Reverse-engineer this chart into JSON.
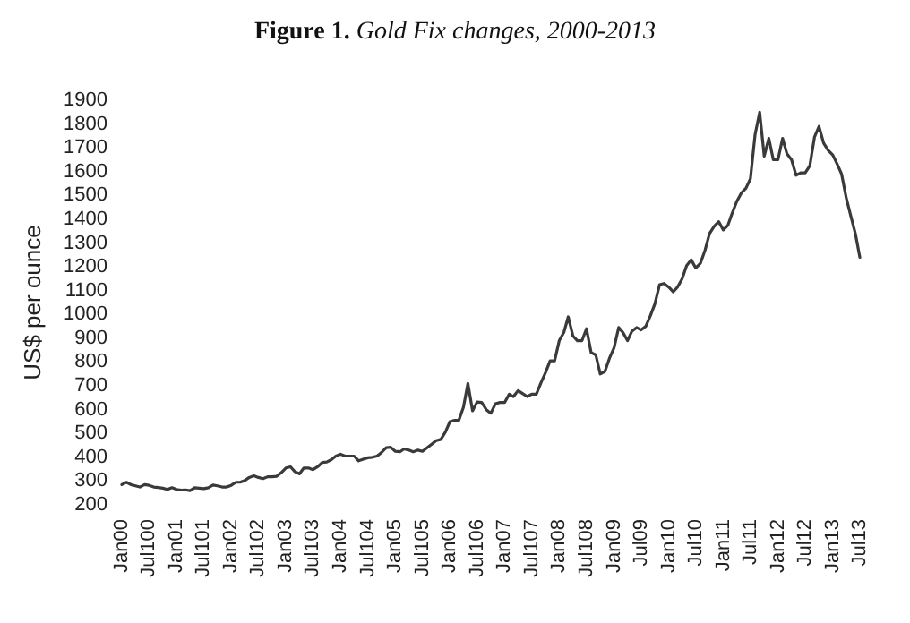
{
  "chart_data": {
    "type": "line",
    "title": "Figure 1. Gold Fix changes, 2000-2013",
    "ylabel": "US$ per ounce",
    "x": [
      "2000-01",
      "2000-02",
      "2000-03",
      "2000-04",
      "2000-05",
      "2000-06",
      "2000-07",
      "2000-08",
      "2000-09",
      "2000-10",
      "2000-11",
      "2000-12",
      "2001-01",
      "2001-02",
      "2001-03",
      "2001-04",
      "2001-05",
      "2001-06",
      "2001-07",
      "2001-08",
      "2001-09",
      "2001-10",
      "2001-11",
      "2001-12",
      "2002-01",
      "2002-02",
      "2002-03",
      "2002-04",
      "2002-05",
      "2002-06",
      "2002-07",
      "2002-08",
      "2002-09",
      "2002-10",
      "2002-11",
      "2002-12",
      "2003-01",
      "2003-02",
      "2003-03",
      "2003-04",
      "2003-05",
      "2003-06",
      "2003-07",
      "2003-08",
      "2003-09",
      "2003-10",
      "2003-11",
      "2003-12",
      "2004-01",
      "2004-02",
      "2004-03",
      "2004-04",
      "2004-05",
      "2004-06",
      "2004-07",
      "2004-08",
      "2004-09",
      "2004-10",
      "2004-11",
      "2004-12",
      "2005-01",
      "2005-02",
      "2005-03",
      "2005-04",
      "2005-05",
      "2005-06",
      "2005-07",
      "2005-08",
      "2005-09",
      "2005-10",
      "2005-11",
      "2005-12",
      "2006-01",
      "2006-02",
      "2006-03",
      "2006-04",
      "2006-05",
      "2006-06",
      "2006-07",
      "2006-08",
      "2006-09",
      "2006-10",
      "2006-11",
      "2006-12",
      "2007-01",
      "2007-02",
      "2007-03",
      "2007-04",
      "2007-05",
      "2007-06",
      "2007-07",
      "2007-08",
      "2007-09",
      "2007-10",
      "2007-11",
      "2007-12",
      "2008-01",
      "2008-02",
      "2008-03",
      "2008-04",
      "2008-05",
      "2008-06",
      "2008-07",
      "2008-08",
      "2008-09",
      "2008-10",
      "2008-11",
      "2008-12",
      "2009-01",
      "2009-02",
      "2009-03",
      "2009-04",
      "2009-05",
      "2009-06",
      "2009-07",
      "2009-08",
      "2009-09",
      "2009-10",
      "2009-11",
      "2009-12",
      "2010-01",
      "2010-02",
      "2010-03",
      "2010-04",
      "2010-05",
      "2010-06",
      "2010-07",
      "2010-08",
      "2010-09",
      "2010-10",
      "2010-11",
      "2010-12",
      "2011-01",
      "2011-02",
      "2011-03",
      "2011-04",
      "2011-05",
      "2011-06",
      "2011-07",
      "2011-08",
      "2011-09",
      "2011-10",
      "2011-11",
      "2011-12",
      "2012-01",
      "2012-02",
      "2012-03",
      "2012-04",
      "2012-05",
      "2012-06",
      "2012-07",
      "2012-08",
      "2012-09",
      "2012-10",
      "2012-11",
      "2012-12",
      "2013-01",
      "2013-02",
      "2013-03",
      "2013-04",
      "2013-05",
      "2013-06",
      "2013-07"
    ],
    "series": [
      {
        "color": "#3a3a3a",
        "values": [
          285,
          295,
          285,
          280,
          275,
          285,
          282,
          275,
          273,
          270,
          265,
          272,
          265,
          262,
          263,
          260,
          272,
          270,
          268,
          272,
          283,
          280,
          275,
          275,
          282,
          295,
          295,
          302,
          315,
          322,
          315,
          310,
          318,
          318,
          320,
          335,
          355,
          360,
          340,
          330,
          355,
          355,
          348,
          360,
          378,
          380,
          390,
          405,
          413,
          405,
          405,
          405,
          385,
          392,
          398,
          400,
          405,
          420,
          440,
          442,
          425,
          423,
          435,
          430,
          423,
          430,
          425,
          440,
          455,
          470,
          475,
          505,
          550,
          555,
          555,
          610,
          710,
          595,
          632,
          630,
          600,
          585,
          625,
          630,
          630,
          665,
          655,
          680,
          668,
          655,
          665,
          665,
          713,
          755,
          805,
          805,
          890,
          925,
          990,
          910,
          890,
          890,
          940,
          840,
          830,
          750,
          760,
          815,
          860,
          945,
          925,
          890,
          930,
          945,
          935,
          950,
          995,
          1045,
          1125,
          1130,
          1115,
          1095,
          1115,
          1150,
          1205,
          1230,
          1195,
          1215,
          1270,
          1340,
          1370,
          1390,
          1355,
          1375,
          1425,
          1475,
          1510,
          1530,
          1570,
          1755,
          1850,
          1665,
          1740,
          1650,
          1650,
          1740,
          1675,
          1650,
          1585,
          1595,
          1595,
          1625,
          1745,
          1790,
          1720,
          1690,
          1670,
          1630,
          1590,
          1490,
          1415,
          1340,
          1240
        ]
      }
    ],
    "xlim": [
      "2000-01",
      "2013-07"
    ],
    "xticks": [
      {
        "value": "2000-01",
        "label": "Jan00"
      },
      {
        "value": "2000-07",
        "label": "Jul100"
      },
      {
        "value": "2001-01",
        "label": "Jan01"
      },
      {
        "value": "2001-07",
        "label": "Jul101"
      },
      {
        "value": "2002-01",
        "label": "Jan02"
      },
      {
        "value": "2002-07",
        "label": "Jul102"
      },
      {
        "value": "2003-01",
        "label": "Jan03"
      },
      {
        "value": "2003-07",
        "label": "Jul103"
      },
      {
        "value": "2004-01",
        "label": "Jan04"
      },
      {
        "value": "2004-07",
        "label": "Jul104"
      },
      {
        "value": "2005-01",
        "label": "Jan05"
      },
      {
        "value": "2005-07",
        "label": "Jul105"
      },
      {
        "value": "2006-01",
        "label": "Jan06"
      },
      {
        "value": "2006-07",
        "label": "Jul106"
      },
      {
        "value": "2007-01",
        "label": "Jan07"
      },
      {
        "value": "2007-07",
        "label": "Jul107"
      },
      {
        "value": "2008-01",
        "label": "Jan08"
      },
      {
        "value": "2008-07",
        "label": "Jul108"
      },
      {
        "value": "2009-01",
        "label": "Jan09"
      },
      {
        "value": "2009-07",
        "label": "Jul09"
      },
      {
        "value": "2010-01",
        "label": "Jan10"
      },
      {
        "value": "2010-07",
        "label": "Jul10"
      },
      {
        "value": "2011-01",
        "label": "Jan11"
      },
      {
        "value": "2011-07",
        "label": "Jul11"
      },
      {
        "value": "2012-01",
        "label": "Jan12"
      },
      {
        "value": "2012-07",
        "label": "Jul12"
      },
      {
        "value": "2013-01",
        "label": "Jan13"
      },
      {
        "value": "2013-07",
        "label": "Jul13"
      }
    ],
    "ylim": [
      200,
      1900
    ],
    "yticks": [
      200,
      300,
      400,
      500,
      600,
      700,
      800,
      900,
      1000,
      1100,
      1200,
      1300,
      1400,
      1500,
      1600,
      1700,
      1800,
      1900
    ],
    "grid": false,
    "marker": "none",
    "line_style": "solid"
  }
}
